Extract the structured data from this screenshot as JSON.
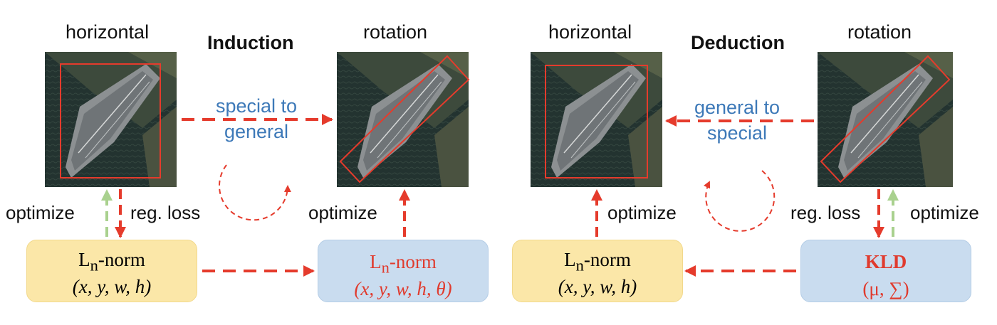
{
  "induction": {
    "title": "Induction",
    "left_label": "horizontal",
    "right_label": "rotation",
    "arrow_text_1": "special to",
    "arrow_text_2": "general",
    "left_opt": "optimize",
    "left_loss": "reg. loss",
    "right_opt": "optimize",
    "box_left": {
      "line1_base": "L",
      "line1_sub": "n",
      "line1_rest": "-norm",
      "line2": "(x, y, w, h)"
    },
    "box_right": {
      "line1_base": "L",
      "line1_sub": "n",
      "line1_rest": "-norm",
      "line2": "(x, y, w, h, θ)"
    }
  },
  "deduction": {
    "title": "Deduction",
    "left_label": "horizontal",
    "right_label": "rotation",
    "arrow_text_1": "general to",
    "arrow_text_2": "special",
    "left_opt": "optimize",
    "right_loss": "reg. loss",
    "right_opt": "optimize",
    "box_left": {
      "line1_base": "L",
      "line1_sub": "n",
      "line1_rest": "-norm",
      "line2": "(x, y, w, h)"
    },
    "box_right": {
      "line1": "KLD",
      "line2": "(μ, ∑)"
    }
  },
  "colors": {
    "arrow_red": "#e53b2c",
    "arrow_green": "#a9d18e",
    "text_blue": "#3d79b8",
    "box_yellow": "#fbe7a8",
    "box_blue": "#c9dcef"
  }
}
